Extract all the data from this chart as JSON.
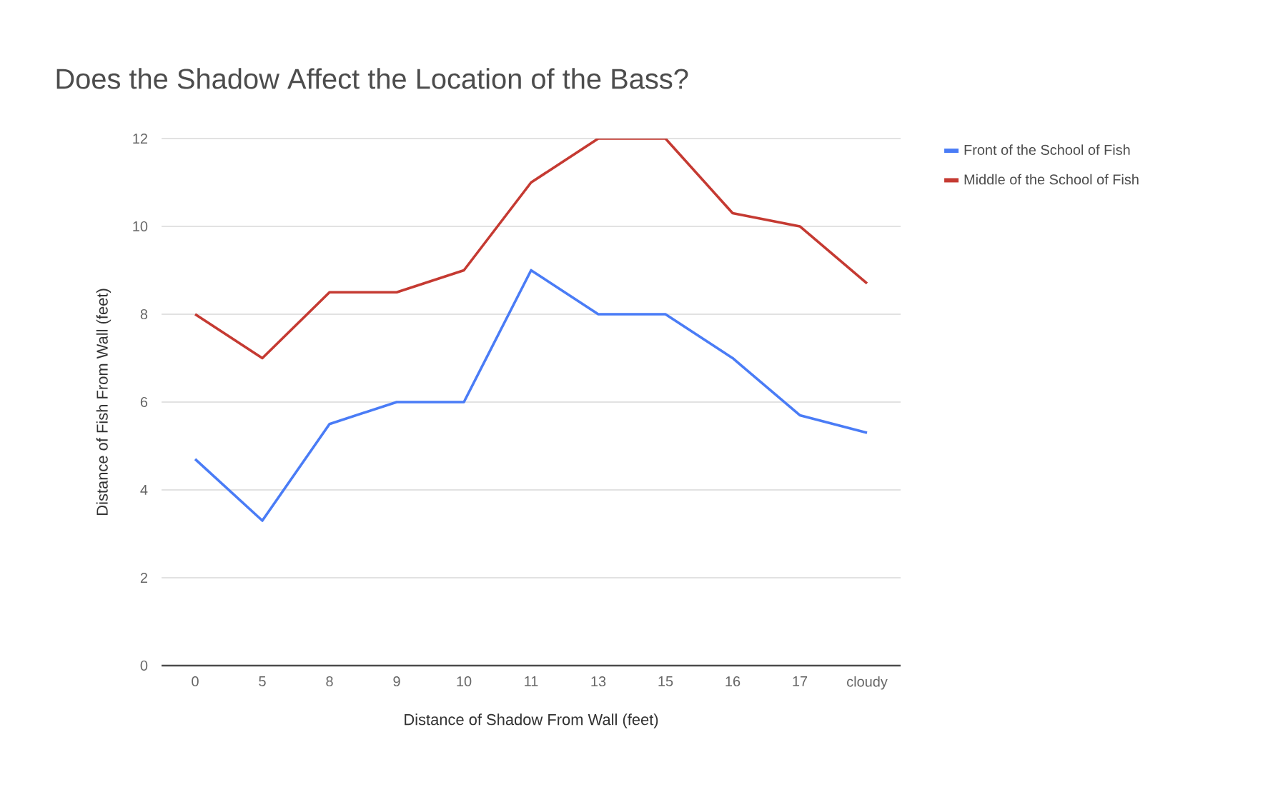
{
  "chart_data": {
    "type": "line",
    "title": "Does the Shadow Affect the Location of the Bass?",
    "xlabel": "Distance of Shadow From Wall (feet)",
    "ylabel": "Distance of Fish From Wall (feet)",
    "categories": [
      "0",
      "5",
      "8",
      "9",
      "10",
      "11",
      "13",
      "15",
      "16",
      "17",
      "cloudy"
    ],
    "series": [
      {
        "name": "Front of the School of Fish",
        "color": "#4a7cf6",
        "values": [
          4.7,
          3.3,
          5.5,
          6,
          6,
          9,
          8,
          8,
          7,
          5.7,
          5.3
        ]
      },
      {
        "name": "Middle of the School of Fish",
        "color": "#c53a32",
        "values": [
          8,
          7,
          8.5,
          8.5,
          9,
          11,
          12,
          12,
          10.3,
          10,
          8.7
        ]
      }
    ],
    "ylim": [
      0,
      12
    ],
    "yticks": [
      0,
      2,
      4,
      6,
      8,
      10,
      12
    ],
    "grid": "y",
    "legend": "top right"
  }
}
